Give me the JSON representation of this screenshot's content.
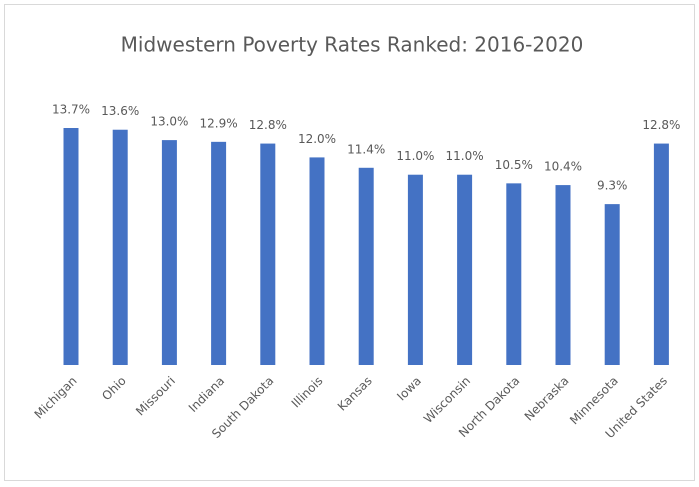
{
  "chart_data": {
    "type": "bar",
    "title": "Midwestern Poverty Rates Ranked: 2016-2020",
    "categories": [
      "Michigan",
      "Ohio",
      "Missouri",
      "Indiana",
      "South Dakota",
      "Illinois",
      "Kansas",
      "Iowa",
      "Wisconsin",
      "North Dakota",
      "Nebraska",
      "Minnesota",
      "United States"
    ],
    "values": [
      13.7,
      13.6,
      13.0,
      12.9,
      12.8,
      12.0,
      11.4,
      11.0,
      11.0,
      10.5,
      10.4,
      9.3,
      12.8
    ],
    "value_labels": [
      "13.7%",
      "13.6%",
      "13.0%",
      "12.9%",
      "12.8%",
      "12.0%",
      "11.4%",
      "11.0%",
      "11.0%",
      "10.5%",
      "10.4%",
      "9.3%",
      "12.8%"
    ],
    "color": "#4472c4"
  }
}
